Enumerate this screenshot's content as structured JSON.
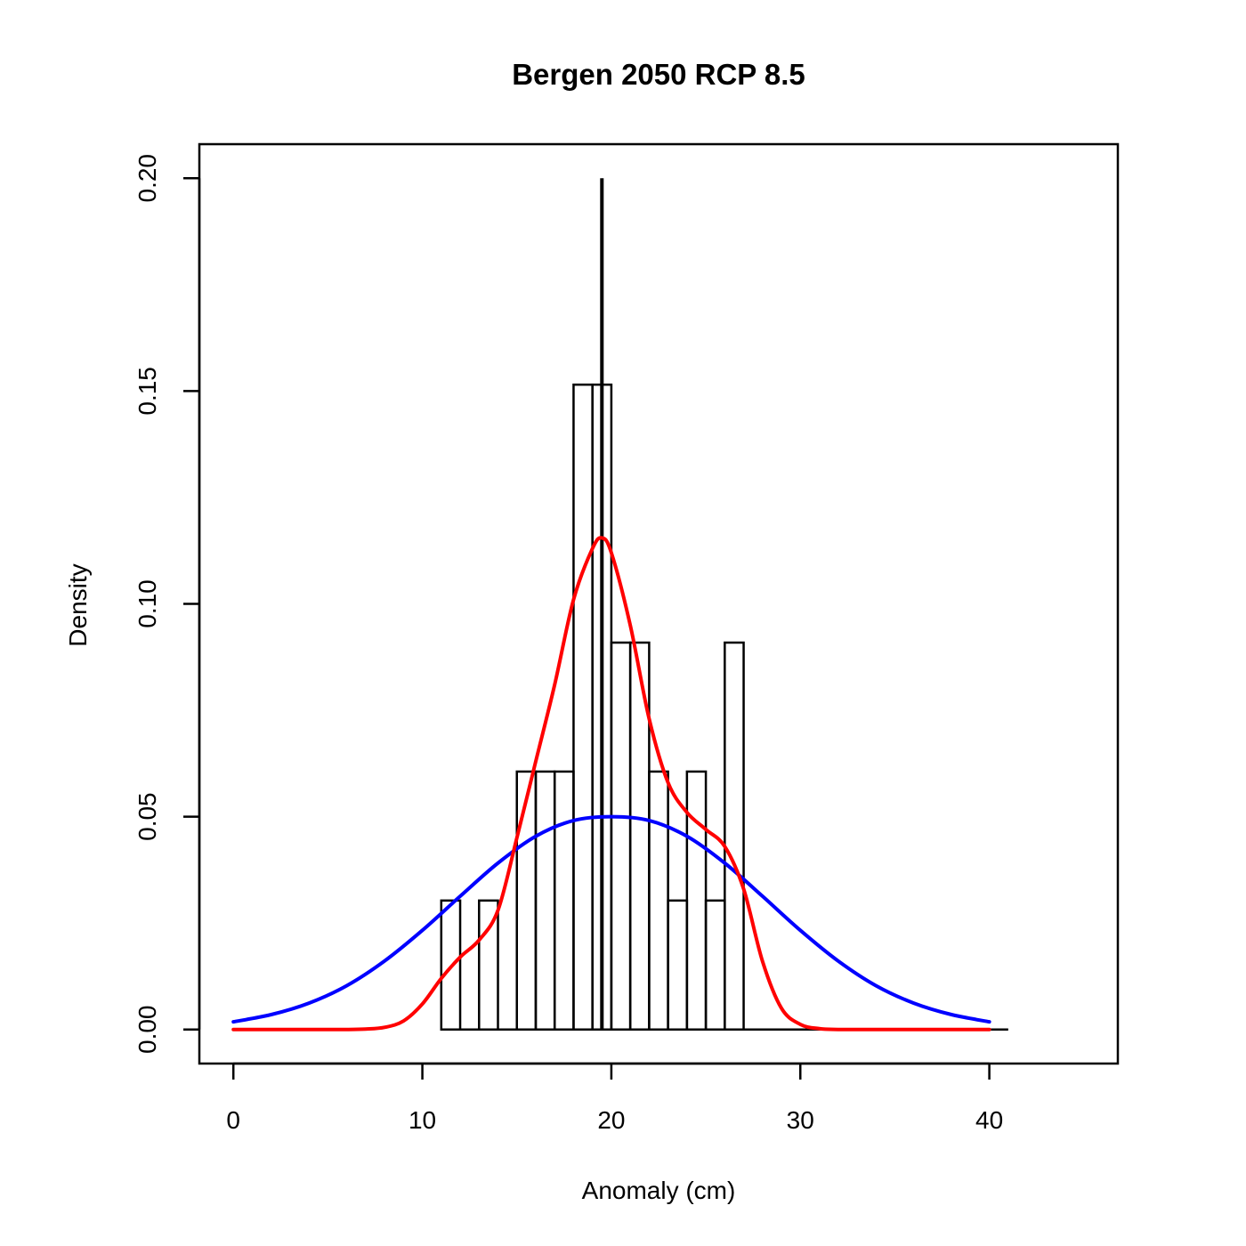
{
  "chart_data": {
    "type": "histogram",
    "title": "Bergen 2050 RCP 8.5",
    "xlabel": "Anomaly (cm)",
    "ylabel": "Density",
    "xlim": [
      -1.8,
      46.8
    ],
    "ylim": [
      -0.008,
      0.208
    ],
    "x_ticks": [
      0,
      10,
      20,
      30,
      40
    ],
    "x_tick_labels": [
      "0",
      "10",
      "20",
      "30",
      "40"
    ],
    "y_ticks": [
      0,
      0.05,
      0.1,
      0.15,
      0.2
    ],
    "y_tick_labels": [
      "0.00",
      "0.05",
      "0.10",
      "0.15",
      "0.20"
    ],
    "grid": false,
    "histogram": {
      "bin_width": 1,
      "bins_start": [
        11,
        12,
        13,
        14,
        15,
        16,
        17,
        18,
        19,
        20,
        21,
        22,
        23,
        24,
        25,
        26,
        27,
        28,
        29,
        30,
        31,
        32,
        33,
        34,
        35,
        36,
        37,
        38,
        39,
        40
      ],
      "density": [
        0.0303,
        0,
        0.0303,
        0,
        0.0606,
        0.0606,
        0.0606,
        0.1515,
        0.1515,
        0.0909,
        0.0909,
        0.0606,
        0.0303,
        0.0606,
        0.0303,
        0.0909,
        0,
        0,
        0,
        0,
        0,
        0,
        0,
        0,
        0,
        0,
        0,
        0,
        0,
        0
      ],
      "baseline_range": [
        11,
        41
      ]
    },
    "vertical_line": {
      "x": 19.5,
      "y_from": 0,
      "y_to": 0.2,
      "color": "#000000"
    },
    "series": [
      {
        "type": "line",
        "color": "#0000ff",
        "x": [
          0,
          2,
          4,
          6,
          8,
          10,
          12,
          14,
          16,
          18,
          20,
          22,
          24,
          26,
          28,
          30,
          32,
          34,
          36,
          38,
          40
        ],
        "y": [
          0.0018,
          0.0035,
          0.0062,
          0.0103,
          0.0161,
          0.0233,
          0.0313,
          0.0391,
          0.0454,
          0.0491,
          0.05,
          0.0491,
          0.0454,
          0.0391,
          0.0313,
          0.0233,
          0.0161,
          0.0103,
          0.0062,
          0.0035,
          0.0018
        ]
      },
      {
        "type": "line",
        "color": "#ff0000",
        "x": [
          0,
          2,
          4,
          6,
          7,
          8,
          9,
          10,
          11,
          12,
          13,
          14,
          15,
          16,
          17,
          18,
          19,
          19.5,
          20,
          21,
          22,
          23,
          24,
          25,
          26,
          27,
          28,
          29,
          30,
          31,
          32,
          34,
          36,
          38,
          40
        ],
        "y": [
          0,
          0,
          0,
          0,
          0.0001,
          0.0005,
          0.002,
          0.006,
          0.012,
          0.017,
          0.021,
          0.028,
          0.045,
          0.063,
          0.081,
          0.101,
          0.113,
          0.1155,
          0.112,
          0.095,
          0.073,
          0.058,
          0.051,
          0.047,
          0.043,
          0.033,
          0.016,
          0.005,
          0.0012,
          0.0002,
          0,
          0,
          0,
          0,
          0
        ]
      }
    ]
  }
}
